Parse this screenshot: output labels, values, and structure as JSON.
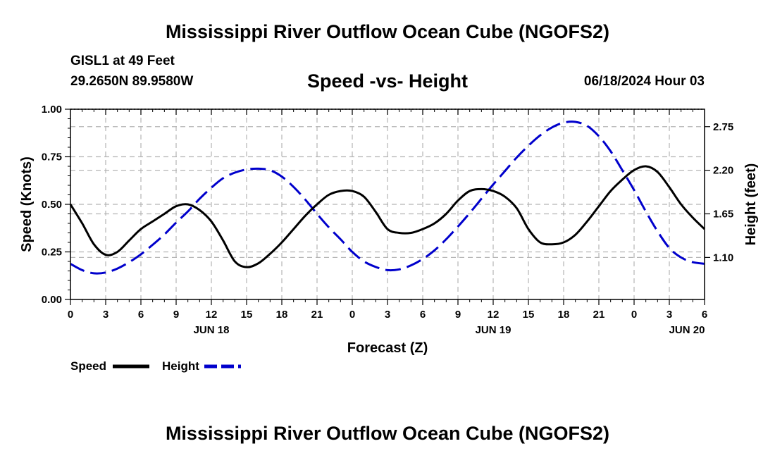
{
  "header": {
    "title": "Mississippi River Outflow Ocean Cube (NGOFS2)",
    "station": "GISL1 at 49 Feet",
    "coords": "29.2650N  89.9580W",
    "subtitle": "Speed -vs- Height",
    "date": "06/18/2024 Hour 03"
  },
  "footer": {
    "title": "Mississippi River Outflow Ocean Cube (NGOFS2)"
  },
  "chart_data": {
    "type": "line",
    "title": "Speed -vs- Height",
    "xlabel": "Forecast (Z)",
    "ylabel": "Speed (Knots)",
    "y2label": "Height (feet)",
    "x_range": [
      0,
      54
    ],
    "ylim": [
      0,
      1.0
    ],
    "y2lim": [
      0.57,
      2.97
    ],
    "x_ticks": [
      0,
      3,
      6,
      9,
      12,
      15,
      18,
      21,
      24,
      27,
      30,
      33,
      36,
      39,
      42,
      45,
      48,
      51,
      54
    ],
    "x_tick_labels": [
      "0",
      "3",
      "6",
      "9",
      "12",
      "15",
      "18",
      "21",
      "0",
      "3",
      "6",
      "9",
      "12",
      "15",
      "18",
      "21",
      "0",
      "3",
      "6"
    ],
    "date_labels": [
      {
        "x": 12,
        "label": "JUN 18"
      },
      {
        "x": 36,
        "label": "JUN 19"
      },
      {
        "x": 52.5,
        "label": "JUN 20"
      }
    ],
    "y_ticks": [
      "0.00",
      "0.25",
      "0.50",
      "0.75",
      "1.00"
    ],
    "y_tick_values": [
      0,
      0.25,
      0.5,
      0.75,
      1.0
    ],
    "y2_ticks": [
      "1.10",
      "1.65",
      "2.20",
      "2.75"
    ],
    "y2_tick_values": [
      1.1,
      1.65,
      2.2,
      2.75
    ],
    "grid": true,
    "legend": "bottom-left",
    "series": [
      {
        "name": "Speed",
        "axis": "left",
        "color": "#000000",
        "dash": "solid",
        "x": [
          0,
          1,
          2,
          3,
          4,
          5,
          6,
          7,
          8,
          9,
          10,
          11,
          12,
          13,
          14,
          15,
          16,
          17,
          18,
          19,
          20,
          21,
          22,
          23,
          24,
          25,
          26,
          27,
          28,
          29,
          30,
          31,
          32,
          33,
          34,
          35,
          36,
          37,
          38,
          39,
          40,
          41,
          42,
          43,
          44,
          45,
          46,
          47,
          48,
          49,
          50,
          51,
          52,
          53,
          54
        ],
        "values": [
          0.5,
          0.4,
          0.29,
          0.235,
          0.25,
          0.31,
          0.37,
          0.41,
          0.45,
          0.49,
          0.5,
          0.47,
          0.41,
          0.31,
          0.2,
          0.17,
          0.19,
          0.24,
          0.3,
          0.37,
          0.44,
          0.5,
          0.55,
          0.57,
          0.57,
          0.54,
          0.46,
          0.37,
          0.35,
          0.35,
          0.37,
          0.4,
          0.45,
          0.52,
          0.57,
          0.58,
          0.57,
          0.54,
          0.48,
          0.37,
          0.3,
          0.29,
          0.3,
          0.34,
          0.41,
          0.49,
          0.57,
          0.63,
          0.68,
          0.7,
          0.67,
          0.59,
          0.5,
          0.43,
          0.37
        ]
      },
      {
        "name": "Height",
        "axis": "right",
        "color": "#0000cc",
        "dash": "dashed",
        "x": [
          0,
          1,
          2,
          3,
          4,
          5,
          6,
          7,
          8,
          9,
          10,
          11,
          12,
          13,
          14,
          15,
          16,
          17,
          18,
          19,
          20,
          21,
          22,
          23,
          24,
          25,
          26,
          27,
          28,
          29,
          30,
          31,
          32,
          33,
          34,
          35,
          36,
          37,
          38,
          39,
          40,
          41,
          42,
          43,
          44,
          45,
          46,
          47,
          48,
          49,
          50,
          51,
          52,
          53,
          54
        ],
        "values": [
          1.02,
          0.94,
          0.9,
          0.91,
          0.96,
          1.04,
          1.14,
          1.26,
          1.39,
          1.54,
          1.68,
          1.84,
          1.98,
          2.1,
          2.17,
          2.21,
          2.22,
          2.2,
          2.12,
          1.99,
          1.83,
          1.65,
          1.48,
          1.33,
          1.17,
          1.05,
          0.98,
          0.94,
          0.95,
          1.0,
          1.08,
          1.19,
          1.33,
          1.49,
          1.66,
          1.84,
          2.02,
          2.19,
          2.36,
          2.51,
          2.64,
          2.74,
          2.8,
          2.81,
          2.76,
          2.63,
          2.44,
          2.2,
          1.95,
          1.68,
          1.43,
          1.22,
          1.1,
          1.04,
          1.02
        ]
      }
    ]
  }
}
